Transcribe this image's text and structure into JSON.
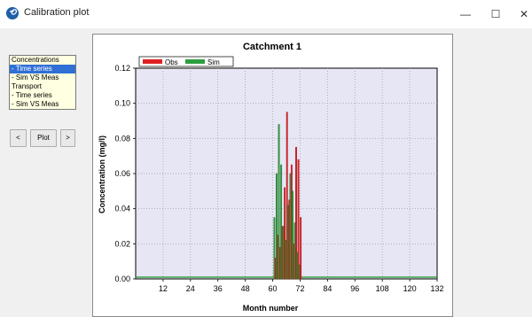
{
  "window": {
    "title": "Calibration plot",
    "minimize": "—",
    "maximize": "☐",
    "close": "✕"
  },
  "listbox": {
    "items": [
      {
        "label": "Concentrations",
        "selected": false
      },
      {
        "label": "- Time series",
        "selected": true
      },
      {
        "label": "- Sim VS Meas",
        "selected": false
      },
      {
        "label": "Transport",
        "selected": false
      },
      {
        "label": "- Time series",
        "selected": false
      },
      {
        "label": "- Sim VS Meas",
        "selected": false
      }
    ]
  },
  "nav": {
    "prev": "<",
    "plot": "Plot",
    "next": ">"
  },
  "colors": {
    "obs": "#e02020",
    "sim": "#2e9e3e",
    "plot_bg": "#e6e6f5"
  },
  "chart_data": {
    "type": "bar",
    "title": "Catchment 1",
    "xlabel": "Month number",
    "ylabel": "Concentration (mg/l)",
    "xlim": [
      0,
      132
    ],
    "ylim": [
      0,
      0.12
    ],
    "xticks": [
      "12",
      "24",
      "36",
      "48",
      "60",
      "72",
      "84",
      "96",
      "108",
      "120",
      "132"
    ],
    "yticks": [
      "0.00",
      "0.02",
      "0.04",
      "0.06",
      "0.08",
      "0.10",
      "0.12"
    ],
    "legend_position": "top-left",
    "x": [
      61,
      62,
      63,
      64,
      65,
      66,
      67,
      68,
      69,
      70,
      71,
      72
    ],
    "series": [
      {
        "name": "Obs",
        "values": [
          0.012,
          0.025,
          0.018,
          0.03,
          0.052,
          0.095,
          0.045,
          0.065,
          0.02,
          0.075,
          0.068,
          0.035
        ]
      },
      {
        "name": "Sim",
        "values": [
          0.035,
          0.06,
          0.088,
          0.065,
          0.03,
          0.022,
          0.042,
          0.06,
          0.05,
          0.032,
          0.015,
          0.008
        ]
      }
    ]
  }
}
